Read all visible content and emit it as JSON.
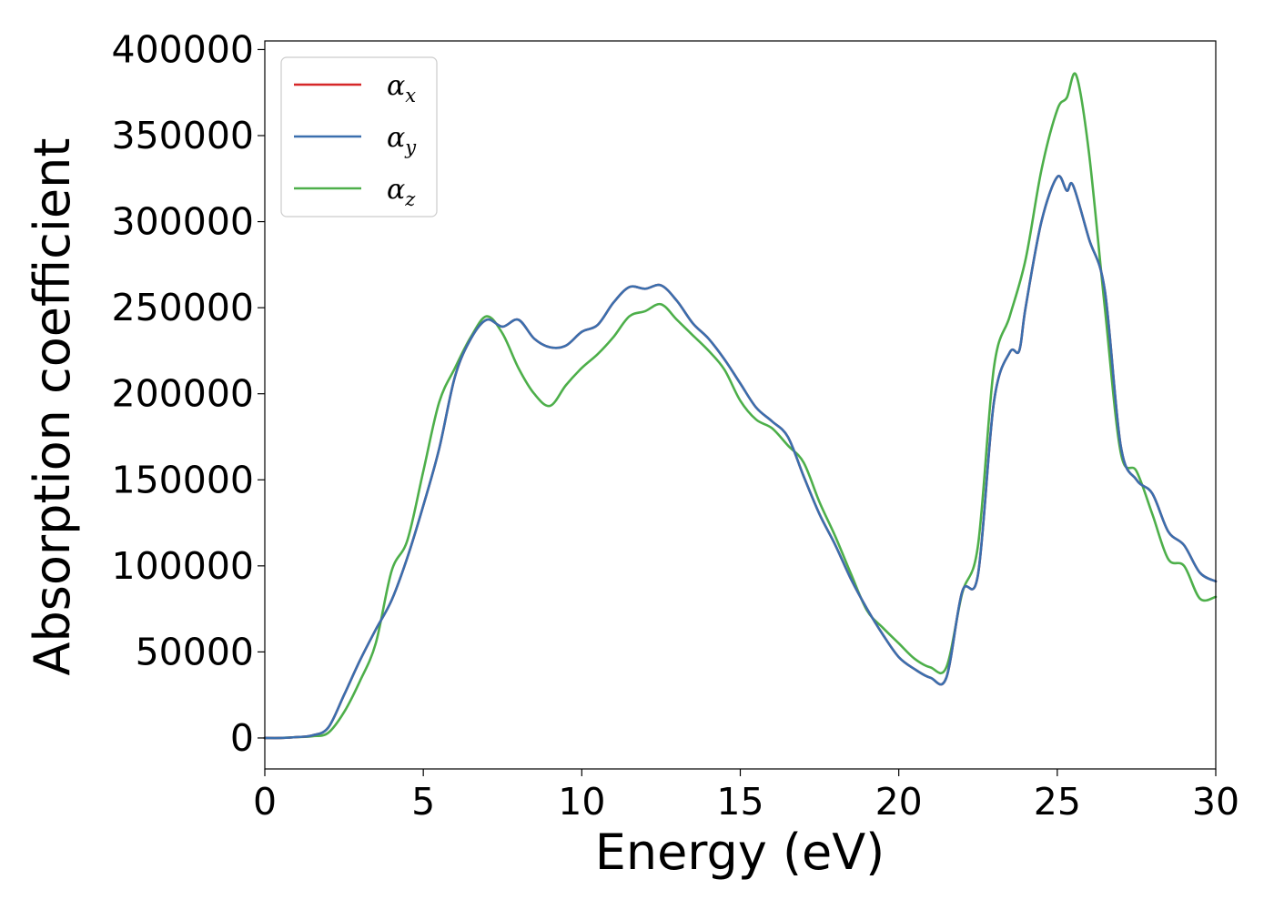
{
  "chart_data": {
    "type": "line",
    "xlabel": "Energy (eV)",
    "ylabel": "Absorption coefficient",
    "xlim": [
      0,
      30
    ],
    "ylim": [
      -18000,
      405000
    ],
    "x_ticks": [
      0,
      5,
      10,
      15,
      20,
      25,
      30
    ],
    "y_ticks": [
      0,
      50000,
      100000,
      150000,
      200000,
      250000,
      300000,
      350000,
      400000
    ],
    "grid": false,
    "legend_position": "top-left",
    "series": [
      {
        "name": "αx",
        "symbol": "α",
        "subscript": "x",
        "color": "#d62728",
        "x": [
          0,
          0.5,
          1,
          1.5,
          2,
          2.5,
          3,
          3.5,
          4,
          4.5,
          5,
          5.5,
          6,
          6.5,
          7,
          7.5,
          8,
          8.5,
          9,
          9.5,
          10,
          10.5,
          11,
          11.5,
          12,
          12.5,
          13,
          13.5,
          14,
          14.5,
          15,
          15.5,
          16,
          16.5,
          17,
          17.5,
          18,
          18.5,
          19,
          19.5,
          20,
          20.5,
          21,
          21.5,
          22,
          22.5,
          23,
          23.5,
          23.8,
          24,
          24.5,
          25,
          25.3,
          25.5,
          26,
          26.5,
          27,
          27.5,
          28,
          28.5,
          29,
          29.5,
          30
        ],
        "y": [
          0,
          0,
          500,
          1500,
          6000,
          25000,
          45000,
          63000,
          80000,
          105000,
          135000,
          168000,
          210000,
          232000,
          243000,
          239000,
          243000,
          232000,
          227000,
          228000,
          236000,
          240000,
          253000,
          262000,
          261000,
          263000,
          254000,
          241000,
          232000,
          220000,
          206000,
          192000,
          184000,
          175000,
          152000,
          130000,
          112000,
          92000,
          75000,
          60000,
          47000,
          40000,
          35000,
          35000,
          85000,
          95000,
          195000,
          224000,
          225000,
          250000,
          300000,
          326000,
          318000,
          321000,
          290000,
          260000,
          170000,
          150000,
          142000,
          120000,
          112000,
          96000,
          91000
        ]
      },
      {
        "name": "αy",
        "symbol": "α",
        "subscript": "y",
        "color": "#3a6fae",
        "x": [
          0,
          0.5,
          1,
          1.5,
          2,
          2.5,
          3,
          3.5,
          4,
          4.5,
          5,
          5.5,
          6,
          6.5,
          7,
          7.5,
          8,
          8.5,
          9,
          9.5,
          10,
          10.5,
          11,
          11.5,
          12,
          12.5,
          13,
          13.5,
          14,
          14.5,
          15,
          15.5,
          16,
          16.5,
          17,
          17.5,
          18,
          18.5,
          19,
          19.5,
          20,
          20.5,
          21,
          21.5,
          22,
          22.5,
          23,
          23.5,
          23.8,
          24,
          24.5,
          25,
          25.3,
          25.5,
          26,
          26.5,
          27,
          27.5,
          28,
          28.5,
          29,
          29.5,
          30
        ],
        "y": [
          0,
          0,
          500,
          1500,
          6000,
          25000,
          45000,
          63000,
          80000,
          105000,
          135000,
          168000,
          210000,
          232000,
          243000,
          239000,
          243000,
          232000,
          227000,
          228000,
          236000,
          240000,
          253000,
          262000,
          261000,
          263000,
          254000,
          241000,
          232000,
          220000,
          206000,
          192000,
          184000,
          175000,
          152000,
          130000,
          112000,
          92000,
          75000,
          60000,
          47000,
          40000,
          35000,
          35000,
          85000,
          95000,
          195000,
          224000,
          225000,
          250000,
          300000,
          326000,
          318000,
          321000,
          290000,
          260000,
          170000,
          150000,
          142000,
          120000,
          112000,
          96000,
          91000
        ]
      },
      {
        "name": "αz",
        "symbol": "α",
        "subscript": "z",
        "color": "#4daf4a",
        "x": [
          0,
          0.5,
          1,
          1.5,
          2,
          2.5,
          3,
          3.5,
          4,
          4.5,
          5,
          5.5,
          6,
          6.5,
          7,
          7.5,
          8,
          8.5,
          9,
          9.5,
          10,
          10.5,
          11,
          11.5,
          12,
          12.5,
          13,
          13.5,
          14,
          14.5,
          15,
          15.5,
          16,
          16.5,
          17,
          17.5,
          18,
          18.5,
          19,
          19.5,
          20,
          20.5,
          21,
          21.5,
          22,
          22.5,
          23,
          23.5,
          24,
          24.5,
          25,
          25.3,
          25.6,
          26,
          26.5,
          27,
          27.5,
          28,
          28.5,
          29,
          29.5,
          30
        ],
        "y": [
          0,
          0,
          500,
          1000,
          3000,
          15000,
          33000,
          55000,
          97000,
          115000,
          155000,
          195000,
          215000,
          233000,
          245000,
          235000,
          215000,
          200000,
          193000,
          205000,
          215000,
          223000,
          233000,
          245000,
          248000,
          252000,
          243000,
          234000,
          225000,
          214000,
          196000,
          185000,
          180000,
          170000,
          160000,
          137000,
          117000,
          95000,
          74000,
          64000,
          55000,
          46000,
          41000,
          41000,
          84000,
          112000,
          215000,
          245000,
          278000,
          330000,
          365000,
          372000,
          385000,
          340000,
          250000,
          166000,
          155000,
          130000,
          104000,
          100000,
          81000,
          82000
        ]
      }
    ]
  }
}
